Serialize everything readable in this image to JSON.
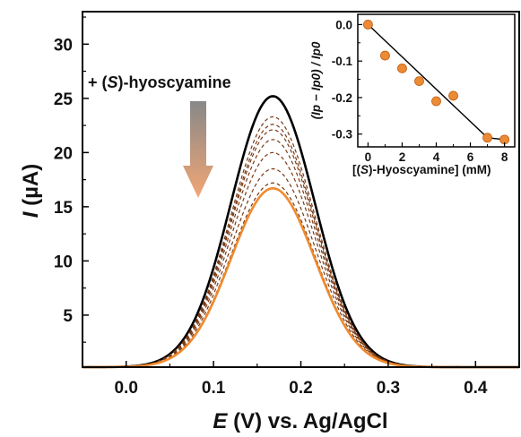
{
  "colors": {
    "initial": "#000000",
    "final": "#f08a2e",
    "intermediate": "#7a3a14",
    "arrow_top": "#888888",
    "arrow_bottom": "#f2a675",
    "inset_marker_fill": "#ec8b35",
    "inset_marker_edge": "#c25a10"
  },
  "chart_data": [
    {
      "type": "line",
      "title": "",
      "xlabel_pre": "E",
      "xlabel_post": " (V) vs. Ag/AgCl",
      "ylabel_pre": "I",
      "ylabel_post": " (µA)",
      "xlim": [
        -0.05,
        0.45
      ],
      "ylim": [
        0.2,
        33
      ],
      "xticks": [
        0.0,
        0.1,
        0.2,
        0.3,
        0.4
      ],
      "xtick_labels": [
        "0.0",
        "0.1",
        "0.2",
        "0.3",
        "0.4"
      ],
      "yticks": [
        5,
        10,
        15,
        20,
        25,
        30
      ],
      "ytick_labels": [
        "5",
        "10",
        "15",
        "20",
        "25",
        "30"
      ],
      "grid": false,
      "annotation": {
        "pre": "+ (",
        "italic": "S",
        "post": ")-hyoscyamine"
      },
      "peak_potential": 0.168,
      "peak_width": 0.048,
      "baseline": 0.2,
      "series": [
        {
          "peak_current": 25.2,
          "style": "solid",
          "color_key": "initial"
        },
        {
          "peak_current": 23.3,
          "style": "dashed",
          "color_key": "intermediate"
        },
        {
          "peak_current": 22.6,
          "style": "dashed",
          "color_key": "intermediate"
        },
        {
          "peak_current": 22.1,
          "style": "dashed",
          "color_key": "intermediate"
        },
        {
          "peak_current": 21.2,
          "style": "dashed",
          "color_key": "intermediate"
        },
        {
          "peak_current": 20.0,
          "style": "dashed",
          "color_key": "intermediate"
        },
        {
          "peak_current": 18.5,
          "style": "dashed",
          "color_key": "intermediate"
        },
        {
          "peak_current": 17.2,
          "style": "dashed",
          "color_key": "intermediate"
        },
        {
          "peak_current": 16.7,
          "style": "solid",
          "color_key": "final"
        }
      ]
    },
    {
      "type": "scatter",
      "title": "",
      "xlabel_pre": "[(",
      "xlabel_italic": "S",
      "xlabel_post": ")-Hyoscyamine] (mM)",
      "ylabel_text": "(Ip − Ip0) / Ip0",
      "xlim": [
        -0.6,
        8.6
      ],
      "ylim": [
        -0.335,
        0.028
      ],
      "xticks": [
        0,
        2,
        4,
        6,
        8
      ],
      "xtick_labels": [
        "0",
        "2",
        "4",
        "6",
        "8"
      ],
      "yticks": [
        0.0,
        -0.1,
        -0.2,
        -0.3
      ],
      "ytick_labels": [
        "0.0",
        "-0.1",
        "-0.2",
        "-0.3"
      ],
      "x": [
        0,
        1,
        2,
        3,
        4,
        5,
        7,
        8
      ],
      "y": [
        0.0,
        -0.085,
        -0.12,
        -0.155,
        -0.21,
        -0.195,
        -0.31,
        -0.315
      ],
      "fit_x": [
        0,
        7,
        8
      ],
      "fit_y": [
        0.0,
        -0.31,
        -0.315
      ]
    }
  ]
}
